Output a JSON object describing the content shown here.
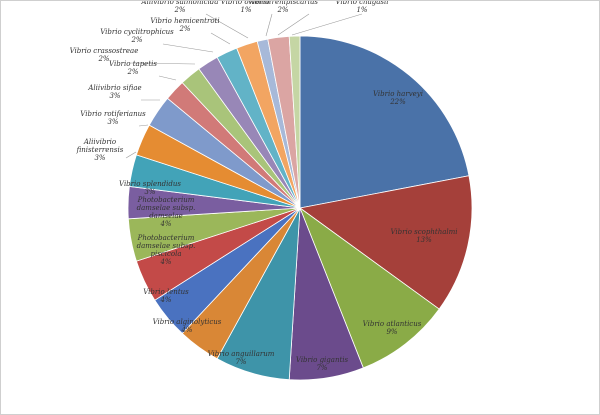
{
  "chart_data": {
    "type": "pie",
    "title": "",
    "slices": [
      {
        "label": "Vibrio harveyi",
        "pct_label": "22%",
        "value": 22,
        "color": "#4a72a8"
      },
      {
        "label": "Vibrio scophthalmi",
        "pct_label": "13%",
        "value": 13,
        "color": "#a5403a"
      },
      {
        "label": "Vibrio atlanticus",
        "pct_label": "9%",
        "value": 9,
        "color": "#8aab47"
      },
      {
        "label": "Vibrio gigantis",
        "pct_label": "7%",
        "value": 7,
        "color": "#6b4b8c"
      },
      {
        "label": "Vibrio anguillarum",
        "pct_label": "7%",
        "value": 7,
        "color": "#3e94a9"
      },
      {
        "label": "Vibrio alginolyticus",
        "pct_label": "4%",
        "value": 4,
        "color": "#d98736"
      },
      {
        "label": "Vibrio lentus",
        "pct_label": "4%",
        "value": 4,
        "color": "#4a72c0"
      },
      {
        "label": "Photobacterium damselae subsp. piscicola",
        "pct_label": "4%",
        "value": 4,
        "color": "#c34a48"
      },
      {
        "label": "Photobacterium damselae subsp. damselae",
        "pct_label": "4%",
        "value": 4,
        "color": "#9bb75a"
      },
      {
        "label": "Vibrio splendidus",
        "pct_label": "3%",
        "value": 3,
        "color": "#7a5ea0"
      },
      {
        "label": "Aliivibrio finisterrensis",
        "pct_label": "3%",
        "value": 3,
        "color": "#42a3b8"
      },
      {
        "label": "Vibrio rotiferianus",
        "pct_label": "3%",
        "value": 3,
        "color": "#e58c32"
      },
      {
        "label": "Aliivibrio sifiae",
        "pct_label": "3%",
        "value": 3,
        "color": "#7f9acb"
      },
      {
        "label": "Vibrio tapetis",
        "pct_label": "2%",
        "value": 2,
        "color": "#d17a78"
      },
      {
        "label": "Vibrio crassostreae",
        "pct_label": "2%",
        "value": 2,
        "color": "#a9c47a"
      },
      {
        "label": "Vibrio cyclitrophicus",
        "pct_label": "2%",
        "value": 2,
        "color": "#9887b7"
      },
      {
        "label": "Vibrio hemicentroti",
        "pct_label": "2%",
        "value": 2,
        "color": "#62b3c7"
      },
      {
        "label": "Aliivibrio salmonicida",
        "pct_label": "2%",
        "value": 2,
        "color": "#f2a562"
      },
      {
        "label": "Vibrio owensii",
        "pct_label": "1%",
        "value": 1,
        "color": "#a7b9d9"
      },
      {
        "label": "Vibrio renipiscarius",
        "pct_label": "2%",
        "value": 2,
        "color": "#dba5a3"
      },
      {
        "label": "Vibrio chagasii",
        "pct_label": "1%",
        "value": 1,
        "color": "#c5d6a4"
      }
    ]
  }
}
